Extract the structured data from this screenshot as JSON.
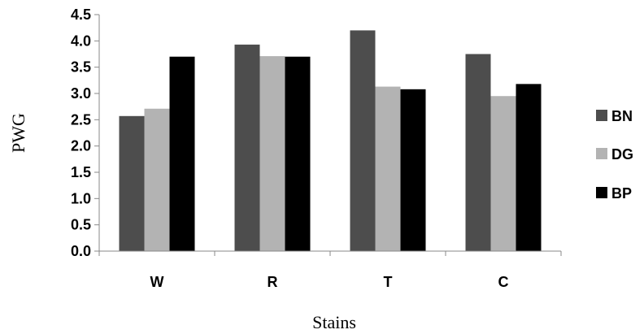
{
  "chart_data": {
    "type": "bar",
    "categories": [
      "W",
      "R",
      "T",
      "C"
    ],
    "series": [
      {
        "name": "BN",
        "color": "#4d4d4d",
        "values": [
          2.57,
          3.93,
          4.2,
          3.75
        ]
      },
      {
        "name": "DG",
        "color": "#b3b3b3",
        "values": [
          2.71,
          3.71,
          3.13,
          2.95
        ]
      },
      {
        "name": "BP",
        "color": "#000000",
        "values": [
          3.7,
          3.7,
          3.08,
          3.18
        ]
      }
    ],
    "title": "",
    "xlabel": "Stains",
    "ylabel": "PWG",
    "ylim": [
      0,
      4.5
    ],
    "yticks": [
      0.0,
      0.5,
      1.0,
      1.5,
      2.0,
      2.5,
      3.0,
      3.5,
      4.0,
      4.5
    ],
    "ytick_labels": [
      "0.0",
      "0.5",
      "1.0",
      "1.5",
      "2.0",
      "2.5",
      "3.0",
      "3.5",
      "4.0",
      "4.5"
    ],
    "grid": false,
    "legend_position": "right"
  }
}
